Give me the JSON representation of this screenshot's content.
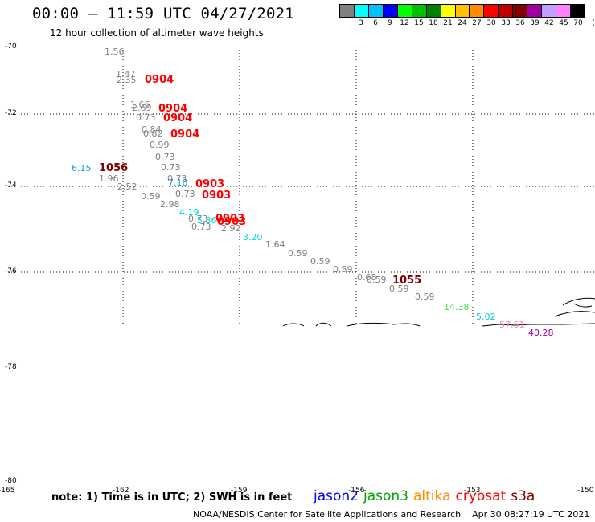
{
  "header": {
    "title": "00:00 – 11:59 UTC 04/27/2021",
    "subtitle": "12 hour collection of altimeter wave heights"
  },
  "legend": {
    "unit": "(ft)",
    "colors": [
      "#808080",
      "#00ffff",
      "#00bfff",
      "#0000ff",
      "#00ff00",
      "#00c000",
      "#008000",
      "#ffff00",
      "#ffc000",
      "#ff8c00",
      "#ff0000",
      "#c00000",
      "#800000",
      "#a000a0",
      "#c0a0ff",
      "#ff80ff",
      "#000000"
    ],
    "ticks": [
      "3",
      "6",
      "9",
      "12",
      "15",
      "18",
      "21",
      "24",
      "27",
      "30",
      "33",
      "36",
      "39",
      "42",
      "45",
      "70"
    ]
  },
  "map": {
    "lat_labels": [
      "-70",
      "-72",
      "-74",
      "-76",
      "-78",
      "-80"
    ],
    "lon_labels": [
      "-165",
      "-162",
      "-159",
      "-156",
      "-153",
      "-150"
    ],
    "swh_points": [
      {
        "text": "1.56",
        "color": "#808080"
      },
      {
        "text": "1.47",
        "color": "#808080"
      },
      {
        "text": "2.35",
        "color": "#808080"
      },
      {
        "text": "1.66",
        "color": "#808080"
      },
      {
        "text": "2.69",
        "color": "#808080"
      },
      {
        "text": "0.73",
        "color": "#808080"
      },
      {
        "text": "0.84",
        "color": "#808080"
      },
      {
        "text": "0.82",
        "color": "#808080"
      },
      {
        "text": "0.99",
        "color": "#808080"
      },
      {
        "text": "0.73",
        "color": "#808080"
      },
      {
        "text": "0.73",
        "color": "#808080"
      },
      {
        "text": "0.73",
        "color": "#808080"
      },
      {
        "text": "6.15",
        "color": "#1ca0d8"
      },
      {
        "text": "1.96",
        "color": "#808080"
      },
      {
        "text": "2.52",
        "color": "#808080"
      },
      {
        "text": "7.18",
        "color": "#1ca0d8"
      },
      {
        "text": "0.73",
        "color": "#808080"
      },
      {
        "text": "0.59",
        "color": "#808080"
      },
      {
        "text": "2.98",
        "color": "#808080"
      },
      {
        "text": "4.19",
        "color": "#00d8d8"
      },
      {
        "text": "0.73",
        "color": "#808080"
      },
      {
        "text": "5.36",
        "color": "#00d8d8"
      },
      {
        "text": "0.73",
        "color": "#808080"
      },
      {
        "text": "2.92",
        "color": "#808080"
      },
      {
        "text": "3.20",
        "color": "#00d8d8"
      },
      {
        "text": "1.64",
        "color": "#808080"
      },
      {
        "text": "0.59",
        "color": "#808080"
      },
      {
        "text": "0.59",
        "color": "#808080"
      },
      {
        "text": "0.59",
        "color": "#808080"
      },
      {
        "text": "0.68",
        "color": "#808080"
      },
      {
        "text": "0.59",
        "color": "#808080"
      },
      {
        "text": "0.59",
        "color": "#808080"
      },
      {
        "text": "0.59",
        "color": "#808080"
      },
      {
        "text": "14.38",
        "color": "#40e040"
      },
      {
        "text": "5.02",
        "color": "#00c8e0"
      },
      {
        "text": "57.51",
        "color": "#ff80c0"
      },
      {
        "text": "40.28",
        "color": "#a000a0"
      }
    ],
    "time_labels": [
      {
        "text": "0904",
        "color": "#ff0000"
      },
      {
        "text": "0904",
        "color": "#ff0000"
      },
      {
        "text": "0904",
        "color": "#ff0000"
      },
      {
        "text": "0904",
        "color": "#ff0000"
      },
      {
        "text": "1056",
        "color": "#800000"
      },
      {
        "text": "0903",
        "color": "#ff0000"
      },
      {
        "text": "0903",
        "color": "#ff0000"
      },
      {
        "text": "0903",
        "color": "#ff0000"
      },
      {
        "text": "0903",
        "color": "#ff0000"
      },
      {
        "text": "1055",
        "color": "#800000"
      }
    ]
  },
  "notes": {
    "text": "note: 1) Time is in UTC; 2) SWH is in feet"
  },
  "satellites": [
    {
      "name": "jason2",
      "color": "#0000ff"
    },
    {
      "name": "jason3",
      "color": "#00a000"
    },
    {
      "name": "altika",
      "color": "#ff8c00"
    },
    {
      "name": "cryosat",
      "color": "#ff0000"
    },
    {
      "name": "s3a",
      "color": "#800000"
    }
  ],
  "footer": {
    "credit": "NOAA/NESDIS Center for Satellite Applications and Research",
    "timestamp": "Apr 30 08:27:19 UTC 2021"
  }
}
